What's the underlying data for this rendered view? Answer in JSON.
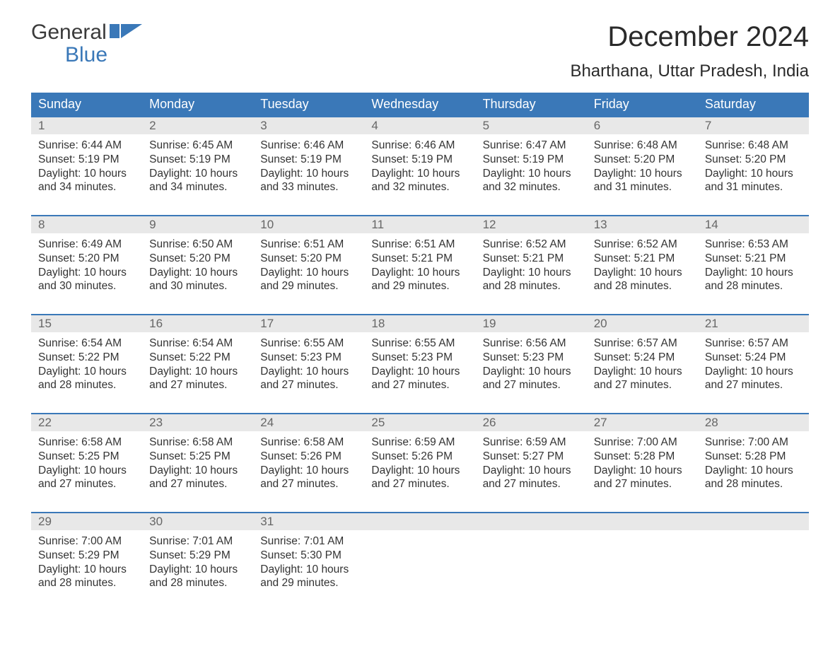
{
  "logo": {
    "top": "General",
    "bottom": "Blue"
  },
  "title": "December 2024",
  "location": "Bharthana, Uttar Pradesh, India",
  "colors": {
    "header_bg": "#3a78b8",
    "header_text": "#ffffff",
    "daynum_bg": "#e8e8e8",
    "daynum_text": "#666666",
    "body_text": "#333333",
    "week_border": "#3a78b8",
    "logo_blue": "#3a78b8"
  },
  "day_names": [
    "Sunday",
    "Monday",
    "Tuesday",
    "Wednesday",
    "Thursday",
    "Friday",
    "Saturday"
  ],
  "weeks": [
    [
      {
        "n": "1",
        "sunrise": "6:44 AM",
        "sunset": "5:19 PM",
        "daylight": "10 hours and 34 minutes."
      },
      {
        "n": "2",
        "sunrise": "6:45 AM",
        "sunset": "5:19 PM",
        "daylight": "10 hours and 34 minutes."
      },
      {
        "n": "3",
        "sunrise": "6:46 AM",
        "sunset": "5:19 PM",
        "daylight": "10 hours and 33 minutes."
      },
      {
        "n": "4",
        "sunrise": "6:46 AM",
        "sunset": "5:19 PM",
        "daylight": "10 hours and 32 minutes."
      },
      {
        "n": "5",
        "sunrise": "6:47 AM",
        "sunset": "5:19 PM",
        "daylight": "10 hours and 32 minutes."
      },
      {
        "n": "6",
        "sunrise": "6:48 AM",
        "sunset": "5:20 PM",
        "daylight": "10 hours and 31 minutes."
      },
      {
        "n": "7",
        "sunrise": "6:48 AM",
        "sunset": "5:20 PM",
        "daylight": "10 hours and 31 minutes."
      }
    ],
    [
      {
        "n": "8",
        "sunrise": "6:49 AM",
        "sunset": "5:20 PM",
        "daylight": "10 hours and 30 minutes."
      },
      {
        "n": "9",
        "sunrise": "6:50 AM",
        "sunset": "5:20 PM",
        "daylight": "10 hours and 30 minutes."
      },
      {
        "n": "10",
        "sunrise": "6:51 AM",
        "sunset": "5:20 PM",
        "daylight": "10 hours and 29 minutes."
      },
      {
        "n": "11",
        "sunrise": "6:51 AM",
        "sunset": "5:21 PM",
        "daylight": "10 hours and 29 minutes."
      },
      {
        "n": "12",
        "sunrise": "6:52 AM",
        "sunset": "5:21 PM",
        "daylight": "10 hours and 28 minutes."
      },
      {
        "n": "13",
        "sunrise": "6:52 AM",
        "sunset": "5:21 PM",
        "daylight": "10 hours and 28 minutes."
      },
      {
        "n": "14",
        "sunrise": "6:53 AM",
        "sunset": "5:21 PM",
        "daylight": "10 hours and 28 minutes."
      }
    ],
    [
      {
        "n": "15",
        "sunrise": "6:54 AM",
        "sunset": "5:22 PM",
        "daylight": "10 hours and 28 minutes."
      },
      {
        "n": "16",
        "sunrise": "6:54 AM",
        "sunset": "5:22 PM",
        "daylight": "10 hours and 27 minutes."
      },
      {
        "n": "17",
        "sunrise": "6:55 AM",
        "sunset": "5:23 PM",
        "daylight": "10 hours and 27 minutes."
      },
      {
        "n": "18",
        "sunrise": "6:55 AM",
        "sunset": "5:23 PM",
        "daylight": "10 hours and 27 minutes."
      },
      {
        "n": "19",
        "sunrise": "6:56 AM",
        "sunset": "5:23 PM",
        "daylight": "10 hours and 27 minutes."
      },
      {
        "n": "20",
        "sunrise": "6:57 AM",
        "sunset": "5:24 PM",
        "daylight": "10 hours and 27 minutes."
      },
      {
        "n": "21",
        "sunrise": "6:57 AM",
        "sunset": "5:24 PM",
        "daylight": "10 hours and 27 minutes."
      }
    ],
    [
      {
        "n": "22",
        "sunrise": "6:58 AM",
        "sunset": "5:25 PM",
        "daylight": "10 hours and 27 minutes."
      },
      {
        "n": "23",
        "sunrise": "6:58 AM",
        "sunset": "5:25 PM",
        "daylight": "10 hours and 27 minutes."
      },
      {
        "n": "24",
        "sunrise": "6:58 AM",
        "sunset": "5:26 PM",
        "daylight": "10 hours and 27 minutes."
      },
      {
        "n": "25",
        "sunrise": "6:59 AM",
        "sunset": "5:26 PM",
        "daylight": "10 hours and 27 minutes."
      },
      {
        "n": "26",
        "sunrise": "6:59 AM",
        "sunset": "5:27 PM",
        "daylight": "10 hours and 27 minutes."
      },
      {
        "n": "27",
        "sunrise": "7:00 AM",
        "sunset": "5:28 PM",
        "daylight": "10 hours and 27 minutes."
      },
      {
        "n": "28",
        "sunrise": "7:00 AM",
        "sunset": "5:28 PM",
        "daylight": "10 hours and 28 minutes."
      }
    ],
    [
      {
        "n": "29",
        "sunrise": "7:00 AM",
        "sunset": "5:29 PM",
        "daylight": "10 hours and 28 minutes."
      },
      {
        "n": "30",
        "sunrise": "7:01 AM",
        "sunset": "5:29 PM",
        "daylight": "10 hours and 28 minutes."
      },
      {
        "n": "31",
        "sunrise": "7:01 AM",
        "sunset": "5:30 PM",
        "daylight": "10 hours and 29 minutes."
      },
      null,
      null,
      null,
      null
    ]
  ],
  "labels": {
    "sunrise": "Sunrise:",
    "sunset": "Sunset:",
    "daylight": "Daylight:"
  }
}
